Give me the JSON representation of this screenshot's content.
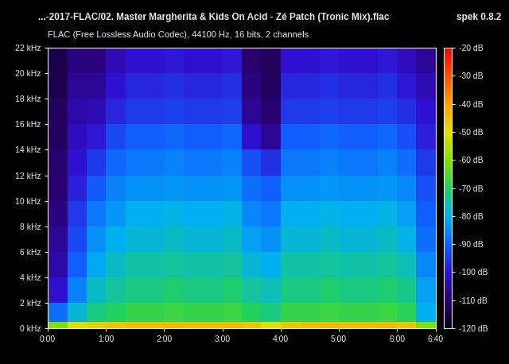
{
  "chart_data": {
    "type": "heatmap",
    "title": "...-2017-FLAC/02. Master Margherita & Kids On Acid - Zé Patch (Tronic Mix).flac",
    "annotation": "spek 0.8.2",
    "subtitle": "FLAC (Free Lossless Audio Codec), 44100 Hz, 16 bits, 2 channels",
    "xlim": [
      0,
      400
    ],
    "xticks": [
      {
        "value": 0,
        "label": "0:00"
      },
      {
        "value": 60,
        "label": "1:00"
      },
      {
        "value": 120,
        "label": "2:00"
      },
      {
        "value": 180,
        "label": "3:00"
      },
      {
        "value": 240,
        "label": "4:00"
      },
      {
        "value": 300,
        "label": "5:00"
      },
      {
        "value": 360,
        "label": "6:00"
      },
      {
        "value": 400,
        "label": "6:40"
      }
    ],
    "ylim": [
      0,
      22
    ],
    "yticks": [
      {
        "value": 0,
        "label": "0 kHz"
      },
      {
        "value": 2,
        "label": "2 kHz"
      },
      {
        "value": 4,
        "label": "4 kHz"
      },
      {
        "value": 6,
        "label": "6 kHz"
      },
      {
        "value": 8,
        "label": "8 kHz"
      },
      {
        "value": 10,
        "label": "10 kHz"
      },
      {
        "value": 12,
        "label": "12 kHz"
      },
      {
        "value": 14,
        "label": "14 kHz"
      },
      {
        "value": 16,
        "label": "16 kHz"
      },
      {
        "value": 18,
        "label": "18 kHz"
      },
      {
        "value": 20,
        "label": "20 kHz"
      },
      {
        "value": 22,
        "label": "22 kHz"
      }
    ],
    "x_bins": [
      0,
      20,
      40,
      60,
      80,
      100,
      120,
      140,
      160,
      180,
      200,
      220,
      240,
      260,
      280,
      300,
      320,
      340,
      360,
      380,
      400
    ],
    "y_bins": [
      0,
      0.5,
      2,
      4,
      6,
      8,
      10,
      12,
      14,
      16,
      18,
      20,
      22
    ],
    "cells": [
      [
        -60,
        -50,
        -48,
        -46,
        -45,
        -45,
        -44,
        -45,
        -45,
        -44,
        -46,
        -50,
        -46,
        -45,
        -44,
        -45,
        -45,
        -44,
        -46,
        -60
      ],
      [
        -88,
        -78,
        -72,
        -70,
        -68,
        -68,
        -67,
        -68,
        -68,
        -67,
        -70,
        -72,
        -68,
        -68,
        -67,
        -68,
        -68,
        -67,
        -69,
        -80
      ],
      [
        -100,
        -86,
        -77,
        -74,
        -72,
        -72,
        -71,
        -72,
        -72,
        -71,
        -74,
        -76,
        -72,
        -72,
        -71,
        -72,
        -72,
        -71,
        -73,
        -82
      ],
      [
        -104,
        -90,
        -81,
        -77,
        -75,
        -75,
        -74,
        -75,
        -75,
        -74,
        -78,
        -80,
        -75,
        -75,
        -74,
        -75,
        -75,
        -74,
        -76,
        -85
      ],
      [
        -106,
        -93,
        -84,
        -80,
        -78,
        -78,
        -77,
        -78,
        -78,
        -77,
        -82,
        -84,
        -78,
        -78,
        -77,
        -78,
        -78,
        -77,
        -79,
        -88
      ],
      [
        -108,
        -95,
        -87,
        -83,
        -80,
        -80,
        -79,
        -80,
        -80,
        -79,
        -85,
        -87,
        -80,
        -80,
        -79,
        -80,
        -80,
        -79,
        -82,
        -90
      ],
      [
        -110,
        -98,
        -91,
        -86,
        -84,
        -84,
        -83,
        -84,
        -84,
        -83,
        -88,
        -90,
        -84,
        -84,
        -83,
        -84,
        -84,
        -83,
        -85,
        -92
      ],
      [
        -110,
        -100,
        -95,
        -89,
        -87,
        -87,
        -86,
        -87,
        -87,
        -86,
        -92,
        -96,
        -87,
        -87,
        -86,
        -87,
        -87,
        -86,
        -88,
        -95
      ],
      [
        -112,
        -102,
        -99,
        -93,
        -90,
        -90,
        -89,
        -90,
        -90,
        -89,
        -100,
        -106,
        -90,
        -90,
        -89,
        -90,
        -90,
        -89,
        -92,
        -98
      ],
      [
        -112,
        -104,
        -103,
        -97,
        -95,
        -95,
        -94,
        -95,
        -95,
        -94,
        -106,
        -110,
        -95,
        -95,
        -94,
        -95,
        -95,
        -94,
        -96,
        -100
      ],
      [
        -114,
        -106,
        -106,
        -100,
        -97,
        -97,
        -96,
        -97,
        -97,
        -96,
        -108,
        -112,
        -97,
        -97,
        -96,
        -97,
        -97,
        -96,
        -99,
        -103
      ],
      [
        -114,
        -108,
        -108,
        -103,
        -100,
        -100,
        -99,
        -100,
        -100,
        -99,
        -110,
        -112,
        -100,
        -100,
        -99,
        -100,
        -100,
        -99,
        -102,
        -106
      ]
    ],
    "colorbar": {
      "range": [
        -120,
        -20
      ],
      "ticks": [
        {
          "value": -20,
          "label": "-20 dB"
        },
        {
          "value": -30,
          "label": "-30 dB"
        },
        {
          "value": -40,
          "label": "-40 dB"
        },
        {
          "value": -50,
          "label": "-50 dB"
        },
        {
          "value": -60,
          "label": "-60 dB"
        },
        {
          "value": -70,
          "label": "-70 dB"
        },
        {
          "value": -80,
          "label": "-80 dB"
        },
        {
          "value": -90,
          "label": "-90 dB"
        },
        {
          "value": -100,
          "label": "-100 dB"
        },
        {
          "value": -110,
          "label": "-110 dB"
        },
        {
          "value": -120,
          "label": "-120 dB"
        }
      ]
    }
  }
}
